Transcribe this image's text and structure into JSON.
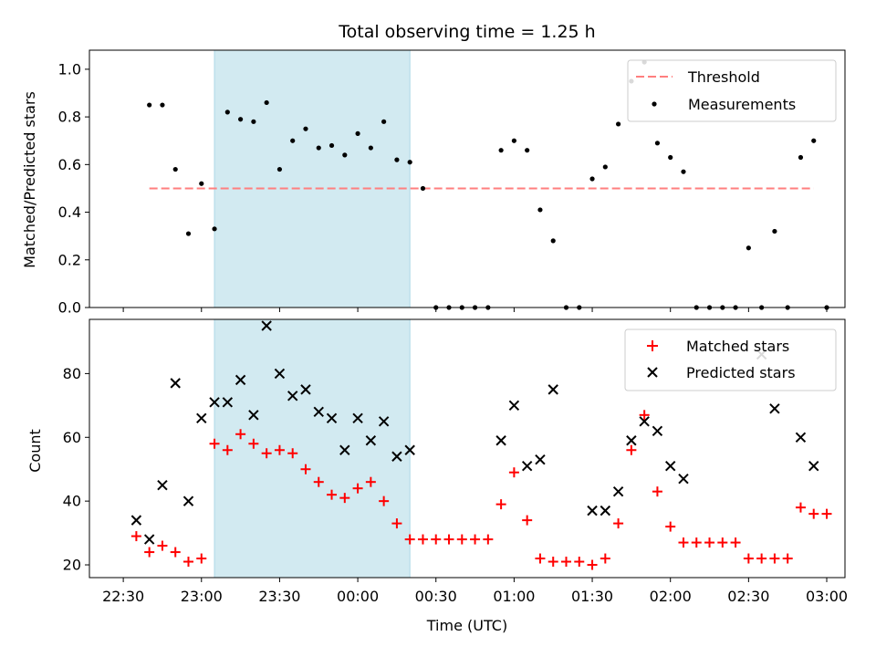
{
  "chart_data": [
    {
      "type": "scatter",
      "title": "Total observing time = 1.25 h",
      "xlabel": "",
      "ylabel": "Matched/Predicted stars",
      "xlim": [
        "22:17",
        "03:07"
      ],
      "ylim": [
        0,
        1.08
      ],
      "yticks": [
        "0.0",
        "0.2",
        "0.4",
        "0.6",
        "0.8",
        "1.0"
      ],
      "legend_position": "upper-right",
      "highlight_span": [
        "23:05",
        "00:20"
      ],
      "threshold": {
        "name": "Threshold",
        "value": 0.5,
        "x_start": "22:40",
        "x_end": "02:55",
        "color": "#ff7f7f"
      },
      "series": [
        {
          "name": "Measurements",
          "marker": "dot",
          "color": "#000000",
          "points": [
            [
              "22:40",
              0.85
            ],
            [
              "22:45",
              0.85
            ],
            [
              "22:50",
              0.58
            ],
            [
              "22:55",
              0.31
            ],
            [
              "23:00",
              0.52
            ],
            [
              "23:05",
              0.33
            ],
            [
              "23:10",
              0.82
            ],
            [
              "23:15",
              0.79
            ],
            [
              "23:20",
              0.78
            ],
            [
              "23:25",
              0.86
            ],
            [
              "23:30",
              0.58
            ],
            [
              "23:35",
              0.7
            ],
            [
              "23:40",
              0.75
            ],
            [
              "23:45",
              0.67
            ],
            [
              "23:50",
              0.68
            ],
            [
              "23:55",
              0.64
            ],
            [
              "00:00",
              0.73
            ],
            [
              "00:05",
              0.67
            ],
            [
              "00:10",
              0.78
            ],
            [
              "00:15",
              0.62
            ],
            [
              "00:20",
              0.61
            ],
            [
              "00:25",
              0.5
            ],
            [
              "00:30",
              0.0
            ],
            [
              "00:35",
              0.0
            ],
            [
              "00:40",
              0.0
            ],
            [
              "00:45",
              0.0
            ],
            [
              "00:50",
              0.0
            ],
            [
              "00:55",
              0.66
            ],
            [
              "01:00",
              0.7
            ],
            [
              "01:05",
              0.66
            ],
            [
              "01:10",
              0.41
            ],
            [
              "01:15",
              0.28
            ],
            [
              "01:20",
              0.0
            ],
            [
              "01:25",
              0.0
            ],
            [
              "01:30",
              0.54
            ],
            [
              "01:35",
              0.59
            ],
            [
              "01:40",
              0.77
            ],
            [
              "01:45",
              0.95
            ],
            [
              "01:50",
              1.03
            ],
            [
              "01:55",
              0.69
            ],
            [
              "02:00",
              0.63
            ],
            [
              "02:05",
              0.57
            ],
            [
              "02:10",
              0.0
            ],
            [
              "02:15",
              0.0
            ],
            [
              "02:20",
              0.0
            ],
            [
              "02:25",
              0.0
            ],
            [
              "02:30",
              0.25
            ],
            [
              "02:35",
              0.0
            ],
            [
              "02:40",
              0.32
            ],
            [
              "02:45",
              0.0
            ],
            [
              "02:50",
              0.63
            ],
            [
              "02:55",
              0.7
            ],
            [
              "03:00",
              0.0
            ]
          ]
        }
      ]
    },
    {
      "type": "scatter",
      "title": "",
      "xlabel": "Time (UTC)",
      "ylabel": "Count",
      "xlim": [
        "22:17",
        "03:07"
      ],
      "ylim": [
        16,
        97
      ],
      "yticks": [
        "20",
        "40",
        "60",
        "80"
      ],
      "xticks": [
        "22:30",
        "23:00",
        "23:30",
        "00:00",
        "00:30",
        "01:00",
        "01:30",
        "02:00",
        "02:30",
        "03:00"
      ],
      "legend_position": "upper-right",
      "highlight_span": [
        "23:05",
        "00:20"
      ],
      "series": [
        {
          "name": "Matched stars",
          "marker": "plus",
          "color": "#ff0000",
          "points": [
            [
              "22:35",
              29
            ],
            [
              "22:40",
              24
            ],
            [
              "22:45",
              26
            ],
            [
              "22:50",
              24
            ],
            [
              "22:55",
              21
            ],
            [
              "23:00",
              22
            ],
            [
              "23:05",
              58
            ],
            [
              "23:10",
              56
            ],
            [
              "23:15",
              61
            ],
            [
              "23:20",
              58
            ],
            [
              "23:25",
              55
            ],
            [
              "23:30",
              56
            ],
            [
              "23:35",
              55
            ],
            [
              "23:40",
              50
            ],
            [
              "23:45",
              46
            ],
            [
              "23:50",
              42
            ],
            [
              "23:55",
              41
            ],
            [
              "00:00",
              44
            ],
            [
              "00:05",
              46
            ],
            [
              "00:10",
              40
            ],
            [
              "00:15",
              33
            ],
            [
              "00:20",
              28
            ],
            [
              "00:25",
              28
            ],
            [
              "00:30",
              28
            ],
            [
              "00:35",
              28
            ],
            [
              "00:40",
              28
            ],
            [
              "00:45",
              28
            ],
            [
              "00:50",
              28
            ],
            [
              "00:55",
              39
            ],
            [
              "01:00",
              49
            ],
            [
              "01:05",
              34
            ],
            [
              "01:10",
              22
            ],
            [
              "01:15",
              21
            ],
            [
              "01:20",
              21
            ],
            [
              "01:25",
              21
            ],
            [
              "01:30",
              20
            ],
            [
              "01:35",
              22
            ],
            [
              "01:40",
              33
            ],
            [
              "01:45",
              56
            ],
            [
              "01:50",
              67
            ],
            [
              "01:55",
              43
            ],
            [
              "02:00",
              32
            ],
            [
              "02:05",
              27
            ],
            [
              "02:10",
              27
            ],
            [
              "02:15",
              27
            ],
            [
              "02:20",
              27
            ],
            [
              "02:25",
              27
            ],
            [
              "02:30",
              22
            ],
            [
              "02:35",
              22
            ],
            [
              "02:40",
              22
            ],
            [
              "02:45",
              22
            ],
            [
              "02:50",
              38
            ],
            [
              "02:55",
              36
            ],
            [
              "03:00",
              36
            ]
          ]
        },
        {
          "name": "Predicted stars",
          "marker": "x",
          "color": "#000000",
          "points": [
            [
              "22:35",
              34
            ],
            [
              "22:40",
              28
            ],
            [
              "22:45",
              45
            ],
            [
              "22:50",
              77
            ],
            [
              "22:55",
              40
            ],
            [
              "23:00",
              66
            ],
            [
              "23:05",
              71
            ],
            [
              "23:10",
              71
            ],
            [
              "23:15",
              78
            ],
            [
              "23:20",
              67
            ],
            [
              "23:25",
              95
            ],
            [
              "23:30",
              80
            ],
            [
              "23:35",
              73
            ],
            [
              "23:40",
              75
            ],
            [
              "23:45",
              68
            ],
            [
              "23:50",
              66
            ],
            [
              "23:55",
              56
            ],
            [
              "00:00",
              66
            ],
            [
              "00:05",
              59
            ],
            [
              "00:10",
              65
            ],
            [
              "00:15",
              54
            ],
            [
              "00:20",
              56
            ],
            [
              "00:55",
              59
            ],
            [
              "01:00",
              70
            ],
            [
              "01:05",
              51
            ],
            [
              "01:10",
              53
            ],
            [
              "01:15",
              75
            ],
            [
              "01:30",
              37
            ],
            [
              "01:35",
              37
            ],
            [
              "01:40",
              43
            ],
            [
              "01:45",
              59
            ],
            [
              "01:50",
              65
            ],
            [
              "01:55",
              62
            ],
            [
              "02:00",
              51
            ],
            [
              "02:05",
              47
            ],
            [
              "02:35",
              86
            ],
            [
              "02:40",
              69
            ],
            [
              "02:50",
              60
            ],
            [
              "02:55",
              51
            ]
          ]
        }
      ]
    }
  ]
}
